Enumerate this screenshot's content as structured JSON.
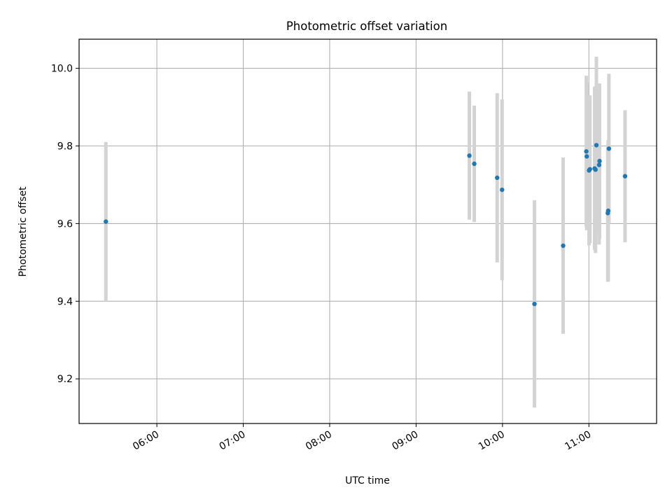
{
  "chart_data": {
    "type": "scatter",
    "title": "Photometric offset variation",
    "xlabel": "UTC time",
    "ylabel": "Photometric offset",
    "x_unit": "minutes",
    "xlim": [
      306,
      707
    ],
    "ylim": [
      9.085,
      10.075
    ],
    "x_ticks": [
      {
        "value": 360,
        "label": "06:00"
      },
      {
        "value": 420,
        "label": "07:00"
      },
      {
        "value": 480,
        "label": "08:00"
      },
      {
        "value": 540,
        "label": "09:00"
      },
      {
        "value": 600,
        "label": "10:00"
      },
      {
        "value": 660,
        "label": "11:00"
      }
    ],
    "y_ticks": [
      {
        "value": 9.2,
        "label": "9.2"
      },
      {
        "value": 9.4,
        "label": "9.4"
      },
      {
        "value": 9.6,
        "label": "9.6"
      },
      {
        "value": 9.8,
        "label": "9.8"
      },
      {
        "value": 10.0,
        "label": "10.0"
      }
    ],
    "grid": true,
    "errorbar_color": "#d3d3d3",
    "marker_color": "#1f77b4",
    "points": [
      {
        "t": 324.6,
        "y": 9.605,
        "err": 0.205
      },
      {
        "t": 577.0,
        "y": 9.775,
        "err": 0.165
      },
      {
        "t": 580.4,
        "y": 9.754,
        "err": 0.15
      },
      {
        "t": 596.3,
        "y": 9.718,
        "err": 0.218
      },
      {
        "t": 599.7,
        "y": 9.687,
        "err": 0.233
      },
      {
        "t": 622.2,
        "y": 9.393,
        "err": 0.267
      },
      {
        "t": 642.1,
        "y": 9.543,
        "err": 0.227
      },
      {
        "t": 658.2,
        "y": 9.786,
        "err": 0.195
      },
      {
        "t": 658.5,
        "y": 9.773,
        "err": 0.19
      },
      {
        "t": 660.1,
        "y": 9.737,
        "err": 0.193
      },
      {
        "t": 660.7,
        "y": 9.74,
        "err": 0.19
      },
      {
        "t": 664.0,
        "y": 9.742,
        "err": 0.21
      },
      {
        "t": 664.6,
        "y": 9.739,
        "err": 0.215
      },
      {
        "t": 665.2,
        "y": 9.802,
        "err": 0.228
      },
      {
        "t": 667.1,
        "y": 9.751,
        "err": 0.205
      },
      {
        "t": 667.4,
        "y": 9.761,
        "err": 0.2
      },
      {
        "t": 673.1,
        "y": 9.627,
        "err": 0.177
      },
      {
        "t": 673.4,
        "y": 9.633,
        "err": 0.182
      },
      {
        "t": 673.9,
        "y": 9.793,
        "err": 0.193
      },
      {
        "t": 685.1,
        "y": 9.722,
        "err": 0.17
      }
    ]
  }
}
